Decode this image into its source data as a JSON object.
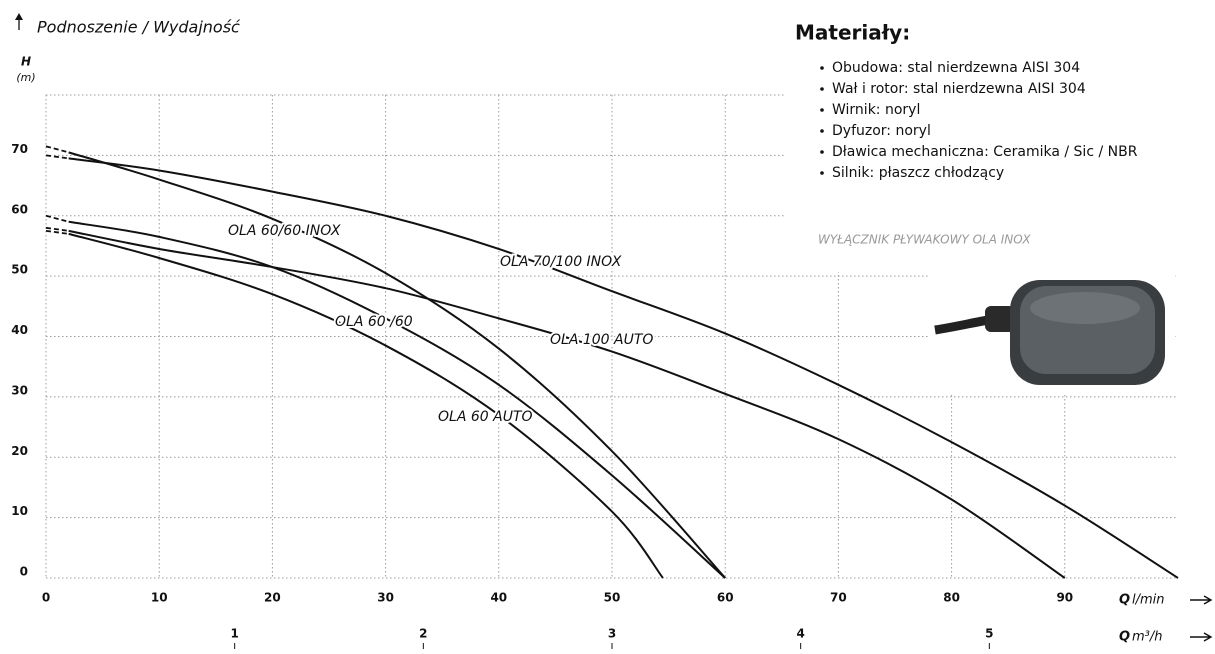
{
  "chart_data": {
    "type": "line",
    "title": "Podnoszenie / Wydajność",
    "y_label": "H",
    "y_unit": "(m)",
    "x_label": "Q",
    "x_unit": "l/min",
    "x2_label": "Q",
    "x2_unit": "m³/h",
    "xlim": [
      0,
      100
    ],
    "xticks": [
      0,
      10,
      20,
      30,
      40,
      50,
      60,
      70,
      80,
      90
    ],
    "x2lim": [
      0,
      6
    ],
    "x2ticks": [
      1,
      2,
      3,
      4,
      5
    ],
    "ylim": [
      0,
      80
    ],
    "yticks": [
      0,
      10,
      20,
      30,
      40,
      50,
      60,
      70
    ],
    "grid": true,
    "series": [
      {
        "name": "OLA 70/100 INOX",
        "color": "#111111",
        "x": [
          0,
          2,
          10,
          20,
          30,
          40,
          50,
          60,
          70,
          80,
          90,
          100
        ],
        "values": [
          70,
          69.5,
          67.5,
          64,
          60,
          54.5,
          47.5,
          40.5,
          32,
          22.5,
          12,
          0
        ]
      },
      {
        "name": "OLA 60/60 INOX",
        "color": "#111111",
        "x": [
          0,
          2,
          10,
          20,
          30,
          40,
          50,
          60
        ],
        "values": [
          71.5,
          70.5,
          66,
          59.5,
          50.5,
          38,
          21,
          0
        ]
      },
      {
        "name": "OLA 100 AUTO",
        "color": "#111111",
        "x": [
          0,
          2,
          10,
          20,
          30,
          40,
          50,
          60,
          70,
          80,
          90
        ],
        "values": [
          58,
          57.5,
          54.5,
          51.5,
          48,
          43,
          37.5,
          30.5,
          23,
          13,
          0
        ]
      },
      {
        "name": "OLA 60 /60",
        "color": "#111111",
        "x": [
          0,
          2,
          10,
          20,
          30,
          40,
          50,
          60
        ],
        "values": [
          60,
          59,
          56.5,
          51.5,
          43,
          32,
          17,
          0
        ]
      },
      {
        "name": "OLA 60 AUTO",
        "color": "#111111",
        "x": [
          0,
          2,
          10,
          20,
          30,
          40,
          50,
          54.5
        ],
        "values": [
          57.5,
          57,
          53,
          47,
          38.5,
          27,
          11,
          0
        ]
      }
    ]
  },
  "side_panel": {
    "title": "Materiały:",
    "items": [
      "Obudowa: stal nierdzewna AISI 304",
      "Wał i rotor: stal nierdzewna AISI 304",
      "Wirnik: noryl",
      "Dyfuzor: noryl",
      "Dławica mechaniczna: Ceramika / Sic / NBR",
      "Silnik: płaszcz chłodzący"
    ],
    "image_caption": "WYŁĄCZNIK PŁYWAKOWY OLA INOX"
  }
}
